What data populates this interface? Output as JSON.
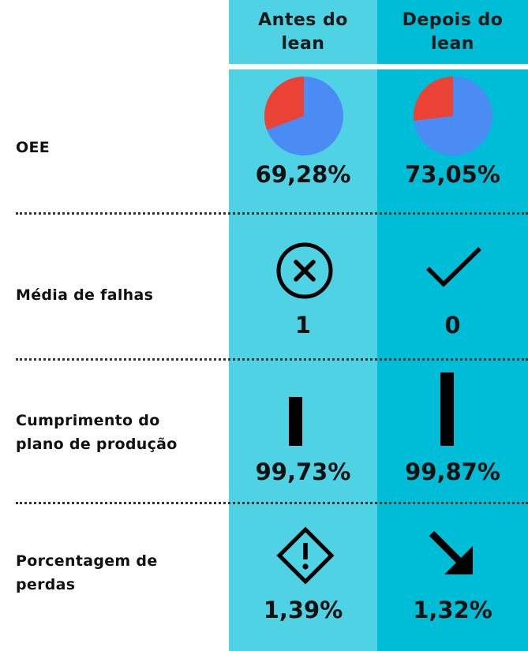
{
  "columns": [
    {
      "label_line1": "Antes do",
      "label_line2": "lean"
    },
    {
      "label_line1": "Depois do",
      "label_line2": "lean"
    }
  ],
  "rows": [
    {
      "label_line1": "OEE",
      "label_line2": "",
      "before": "69,28%",
      "after": "73,05%"
    },
    {
      "label_line1": "Média de falhas",
      "label_line2": "",
      "before": "1",
      "after": "0"
    },
    {
      "label_line1": "Cumprimento do",
      "label_line2": "plano de produção",
      "before": "99,73%",
      "after": "99,87%"
    },
    {
      "label_line1": "Porcentagem de",
      "label_line2": "perdas",
      "before": "1,39%",
      "after": "1,32%"
    }
  ],
  "icons": {
    "failures_before": "x-circle-icon",
    "failures_after": "check-icon",
    "losses_before": "warning-diamond-icon",
    "losses_after": "arrow-down-right-icon"
  },
  "colors": {
    "before_column": "#4fd2e4",
    "after_column": "#00bdd7",
    "pie_main": "#4a8cf4",
    "pie_slice": "#ea4335"
  },
  "chart_data": {
    "type": "table",
    "categories": [
      "Antes do lean",
      "Depois do lean"
    ],
    "series": [
      {
        "name": "OEE",
        "values": [
          69.28,
          73.05
        ],
        "unit": "%"
      },
      {
        "name": "Média de falhas",
        "values": [
          1,
          0
        ]
      },
      {
        "name": "Cumprimento do plano de produção",
        "values": [
          99.73,
          99.87
        ],
        "unit": "%"
      },
      {
        "name": "Porcentagem de perdas",
        "values": [
          1.39,
          1.32
        ],
        "unit": "%"
      }
    ]
  }
}
